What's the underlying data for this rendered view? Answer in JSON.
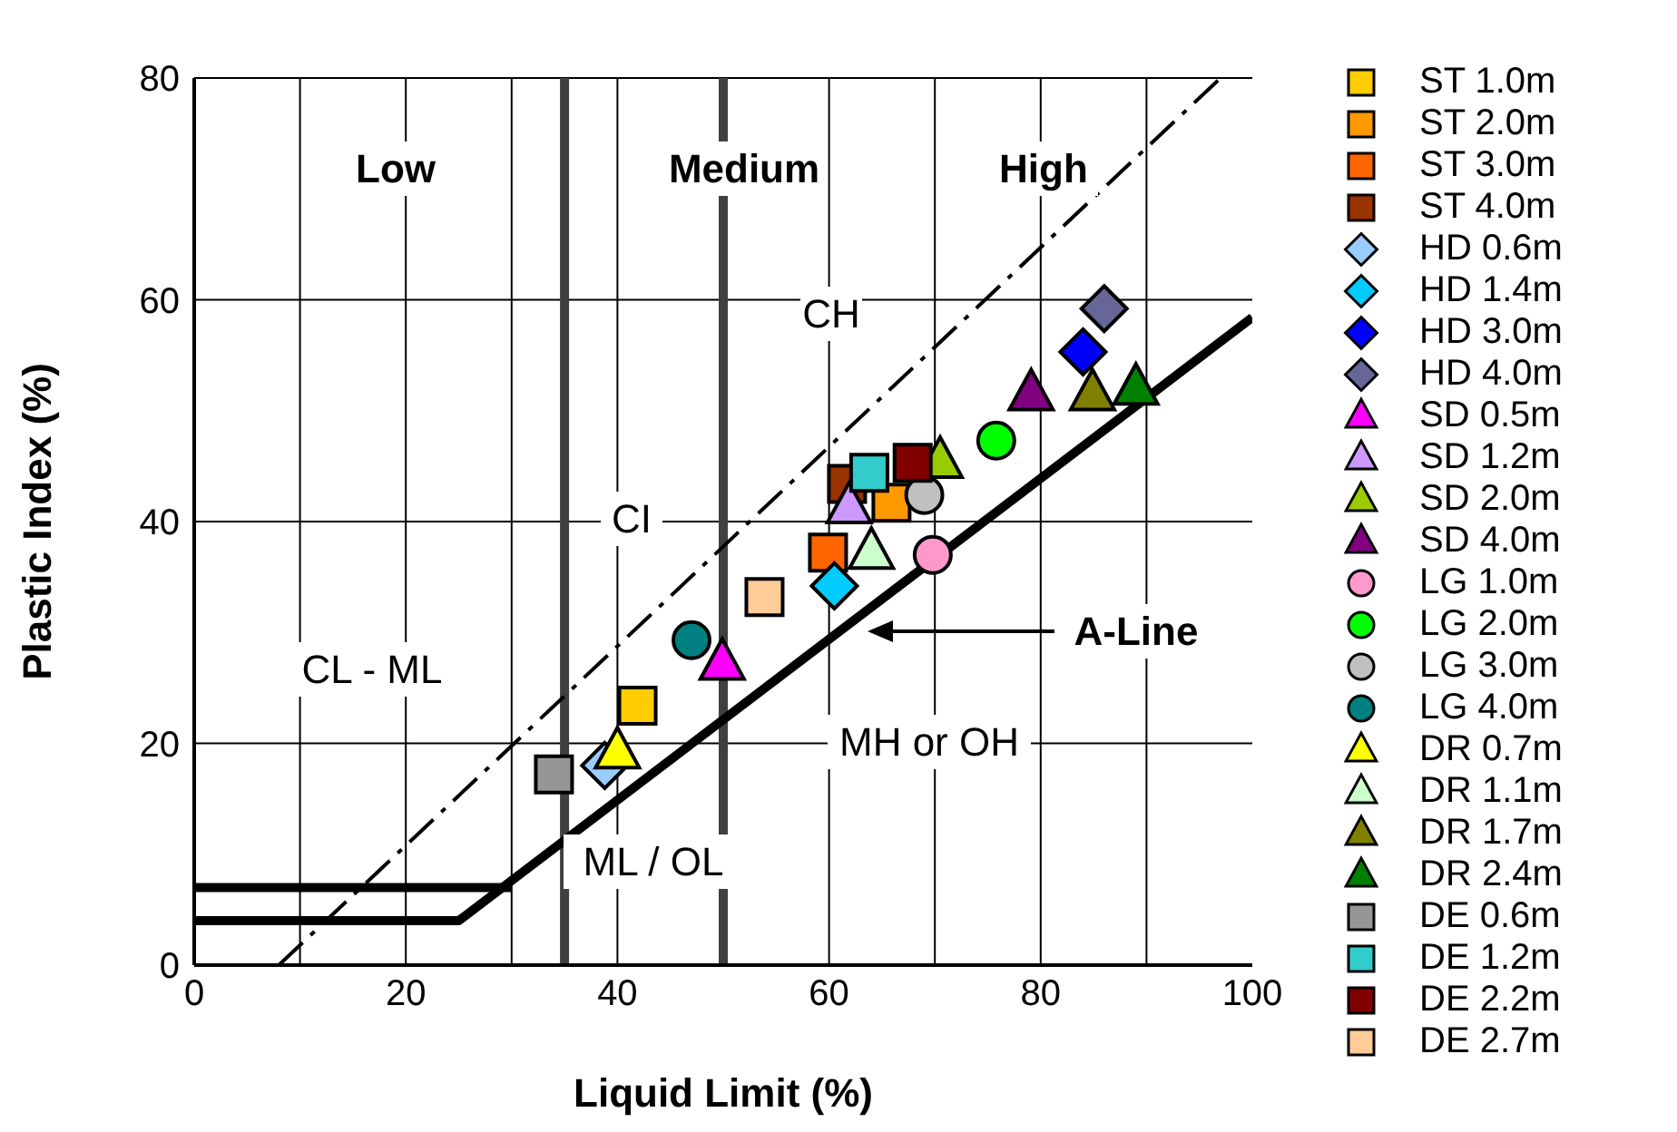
{
  "chart_data": {
    "type": "scatter",
    "xlabel": "Liquid Limit (%)",
    "ylabel": "Plastic Index (%)",
    "xlim": [
      0,
      100
    ],
    "xticks": [
      0,
      20,
      40,
      60,
      80,
      100
    ],
    "ylim": [
      0,
      80
    ],
    "yticks": [
      0,
      20,
      40,
      60,
      80
    ],
    "grid": true,
    "legend": "right",
    "ref_lines": [
      {
        "axis": "x",
        "value": 35,
        "color": "#404040"
      },
      {
        "axis": "x",
        "value": 50,
        "color": "#404040"
      }
    ],
    "annotations": [
      "Low",
      "Medium",
      "High",
      "CH",
      "CI",
      "CL - ML",
      "MH or OH",
      "ML / OL",
      "A-Line"
    ],
    "series": [
      {
        "name": "ST 1.0m",
        "color": "#ffcc00",
        "marker": "square",
        "x": [
          41.9
        ],
        "values": [
          23.4
        ]
      },
      {
        "name": "ST 2.0m",
        "color": "#ff9900",
        "marker": "square",
        "x": [
          65.9
        ],
        "values": [
          41.7
        ]
      },
      {
        "name": "ST 3.0m",
        "color": "#ff6600",
        "marker": "square",
        "x": [
          59.9
        ],
        "values": [
          37.2
        ]
      },
      {
        "name": "ST 4.0m",
        "color": "#993300",
        "marker": "square",
        "x": [
          61.7
        ],
        "values": [
          43.4
        ]
      },
      {
        "name": "HD 0.6m",
        "color": "#99ccff",
        "marker": "diamond",
        "x": [
          38.8
        ],
        "values": [
          18.0
        ]
      },
      {
        "name": "HD 1.4m",
        "color": "#00ccff",
        "marker": "diamond",
        "x": [
          60.5
        ],
        "values": [
          34.2
        ]
      },
      {
        "name": "HD 3.0m",
        "color": "#0000ff",
        "marker": "diamond",
        "x": [
          84.0
        ],
        "values": [
          55.3
        ]
      },
      {
        "name": "HD 4.0m",
        "color": "#666699",
        "marker": "diamond",
        "x": [
          86.0
        ],
        "values": [
          59.2
        ]
      },
      {
        "name": "SD 0.5m",
        "color": "#ff00ff",
        "marker": "triangle",
        "x": [
          49.9
        ],
        "values": [
          27.2
        ]
      },
      {
        "name": "SD 1.2m",
        "color": "#cc99ff",
        "marker": "triangle",
        "x": [
          61.9
        ],
        "values": [
          41.3
        ]
      },
      {
        "name": "SD 2.0m",
        "color": "#99cc00",
        "marker": "triangle",
        "x": [
          70.5
        ],
        "values": [
          45.4
        ]
      },
      {
        "name": "SD 4.0m",
        "color": "#800080",
        "marker": "triangle",
        "x": [
          79.1
        ],
        "values": [
          51.5
        ]
      },
      {
        "name": "LG 1.0m",
        "color": "#ff99cc",
        "marker": "circle",
        "x": [
          69.8
        ],
        "values": [
          37.0
        ]
      },
      {
        "name": "LG 2.0m",
        "color": "#00ff00",
        "marker": "circle",
        "x": [
          75.8
        ],
        "values": [
          47.3
        ]
      },
      {
        "name": "LG 3.0m",
        "color": "#c0c0c0",
        "marker": "circle",
        "x": [
          69.0
        ],
        "values": [
          42.4
        ]
      },
      {
        "name": "LG 4.0m",
        "color": "#008080",
        "marker": "circle",
        "x": [
          47.0
        ],
        "values": [
          29.3
        ]
      },
      {
        "name": "DR 0.7m",
        "color": "#ffff00",
        "marker": "triangle",
        "x": [
          40.0
        ],
        "values": [
          19.2
        ]
      },
      {
        "name": "DR 1.1m",
        "color": "#ccffcc",
        "marker": "triangle",
        "x": [
          64.0
        ],
        "values": [
          37.2
        ]
      },
      {
        "name": "DR 1.7m",
        "color": "#808000",
        "marker": "triangle",
        "x": [
          84.9
        ],
        "values": [
          51.5
        ]
      },
      {
        "name": "DR 2.4m",
        "color": "#008000",
        "marker": "triangle",
        "x": [
          89.0
        ],
        "values": [
          52.0
        ]
      },
      {
        "name": "DE 0.6m",
        "color": "#969696",
        "marker": "square",
        "x": [
          34.0
        ],
        "values": [
          17.2
        ]
      },
      {
        "name": "DE 1.2m",
        "color": "#33cccc",
        "marker": "square",
        "x": [
          63.8
        ],
        "values": [
          44.4
        ]
      },
      {
        "name": "DE 2.2m",
        "color": "#800000",
        "marker": "square",
        "x": [
          67.9
        ],
        "values": [
          45.3
        ]
      },
      {
        "name": "DE 2.7m",
        "color": "#ffcc99",
        "marker": "square",
        "x": [
          53.9
        ],
        "values": [
          33.2
        ]
      },
      {
        "type": "line",
        "color": "#000000",
        "marker": "none",
        "line_style": "solid",
        "x": [
          0,
          25,
          100
        ],
        "values": [
          4,
          4,
          58.4
        ]
      },
      {
        "type": "line",
        "color": "#000000",
        "marker": "none",
        "line_style": "solid",
        "x": [
          0,
          30
        ],
        "values": [
          7,
          7
        ]
      },
      {
        "type": "line",
        "color": "#000000",
        "marker": "none",
        "line_style": "dashed",
        "x": [
          8,
          97
        ],
        "values": [
          0,
          80
        ]
      }
    ]
  }
}
